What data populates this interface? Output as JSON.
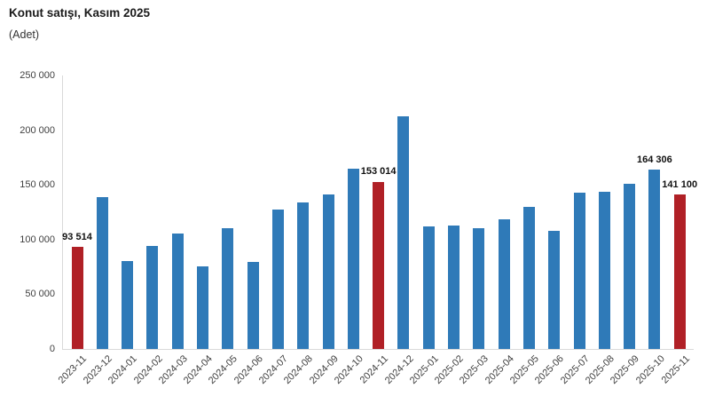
{
  "header": {
    "title": "Konut satışı, Kasım 2025",
    "subtitle": "(Adet)"
  },
  "chart_data": {
    "type": "bar",
    "title": "Konut satışı, Kasım 2025",
    "ylabel": "(Adet)",
    "ylim": [
      0,
      250000
    ],
    "ytick_interval": 50000,
    "ytick_labels": [
      "250 000",
      "200 000",
      "150 000",
      "100 000",
      "50 000",
      "0"
    ],
    "grid": false,
    "legend": "none",
    "categories": [
      "2023-11",
      "2023-12",
      "2024-01",
      "2024-02",
      "2024-03",
      "2024-04",
      "2024-05",
      "2024-06",
      "2024-07",
      "2024-08",
      "2024-09",
      "2024-10",
      "2024-11",
      "2024-12",
      "2025-01",
      "2025-02",
      "2025-03",
      "2025-04",
      "2025-05",
      "2025-06",
      "2025-07",
      "2025-08",
      "2025-09",
      "2025-10",
      "2025-11"
    ],
    "values": [
      93514,
      138577,
      80308,
      93902,
      105476,
      75569,
      110588,
      79313,
      127088,
      134155,
      140919,
      165138,
      153014,
      212637,
      112173,
      112818,
      110795,
      118359,
      130025,
      107723,
      142858,
      143319,
      150738,
      164306,
      141100
    ],
    "highlighted_categories": [
      "2023-11",
      "2024-11",
      "2025-11"
    ],
    "shown_data_labels": [
      {
        "category": "2023-11",
        "text": "93 514"
      },
      {
        "category": "2024-11",
        "text": "153 014"
      },
      {
        "category": "2025-10",
        "text": "164 306"
      },
      {
        "category": "2025-11",
        "text": "141 100"
      }
    ],
    "colors": {
      "bar": "#2f7ab8",
      "highlight": "#b02026",
      "axis_line": "#d9d9d9",
      "tick_text": "#404040",
      "data_label_text": "#111111"
    }
  }
}
